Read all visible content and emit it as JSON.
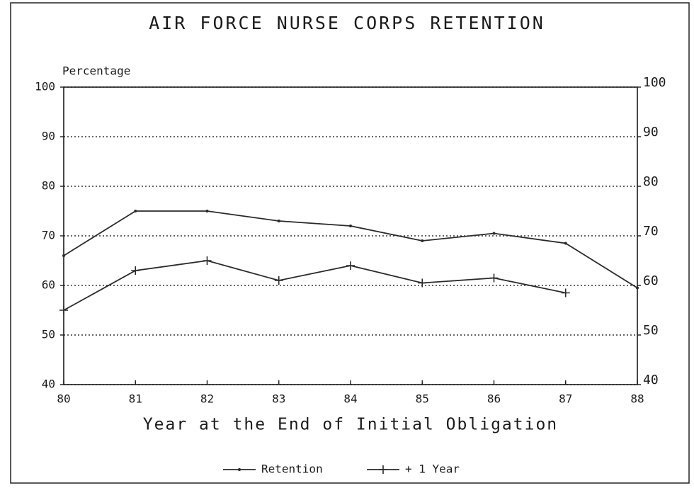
{
  "chart_data": {
    "type": "line",
    "title": "AIR FORCE NURSE CORPS RETENTION",
    "y_axis_label": "Percentage",
    "x_axis_label": "Year at the End of Initial Obligation",
    "categories": [
      "80",
      "81",
      "82",
      "83",
      "84",
      "85",
      "86",
      "87",
      "88"
    ],
    "series": [
      {
        "name": "Retention",
        "color": "#2a2a2a",
        "marker": "dot",
        "values": [
          66,
          75,
          75,
          73,
          72,
          69,
          70.5,
          68.5,
          59.5
        ]
      },
      {
        "name": "+ 1 Year",
        "color": "#2a2a2a",
        "marker": "plus",
        "values": [
          55,
          63,
          65,
          61,
          64,
          60.5,
          61.5,
          58.5,
          null
        ]
      }
    ],
    "ylim": [
      40,
      100
    ],
    "yticks": [
      40,
      50,
      60,
      70,
      80,
      90,
      100
    ],
    "y2lim": [
      40,
      100
    ],
    "y2ticks": [
      40,
      50,
      60,
      70,
      80,
      90,
      100
    ],
    "grid": true,
    "legend": "bottom"
  }
}
